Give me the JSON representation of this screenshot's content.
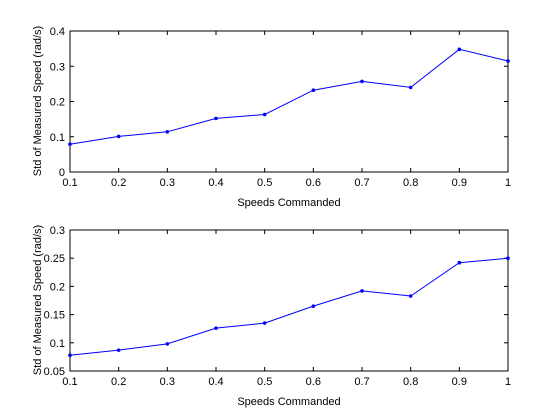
{
  "colors": {
    "series_line": "#0000ff",
    "axes": "#000000",
    "background": "#ffffff"
  },
  "chart_data": [
    {
      "type": "line",
      "title": "",
      "xlabel": "Speeds Commanded",
      "ylabel": "Std of Measured Speed (rad/s)",
      "xlim": [
        0.1,
        1
      ],
      "ylim": [
        0,
        0.4
      ],
      "xticks": [
        0.1,
        0.2,
        0.3,
        0.4,
        0.5,
        0.6,
        0.7,
        0.8,
        0.9,
        1
      ],
      "xtick_labels": [
        "0.1",
        "0.2",
        "0.3",
        "0.4",
        "0.5",
        "0.6",
        "0.7",
        "0.8",
        "0.9",
        "1"
      ],
      "yticks": [
        0,
        0.1,
        0.2,
        0.3,
        0.4
      ],
      "ytick_labels": [
        "0",
        "0.1",
        "0.2",
        "0.3",
        "0.4"
      ],
      "grid": false,
      "legend": "none",
      "marker": "dot",
      "series": [
        {
          "x": [
            0.1,
            0.2,
            0.3,
            0.4,
            0.5,
            0.6,
            0.7,
            0.8,
            0.9,
            1.0
          ],
          "values": [
            0.079,
            0.101,
            0.114,
            0.152,
            0.163,
            0.232,
            0.257,
            0.24,
            0.348,
            0.315
          ]
        }
      ]
    },
    {
      "type": "line",
      "title": "",
      "xlabel": "Speeds Commanded",
      "ylabel": "Std of Measured Speed (rad/s)",
      "xlim": [
        0.1,
        1
      ],
      "ylim": [
        0.05,
        0.3
      ],
      "xticks": [
        0.1,
        0.2,
        0.3,
        0.4,
        0.5,
        0.6,
        0.7,
        0.8,
        0.9,
        1
      ],
      "xtick_labels": [
        "0.1",
        "0.2",
        "0.3",
        "0.4",
        "0.5",
        "0.6",
        "0.7",
        "0.8",
        "0.9",
        "1"
      ],
      "yticks": [
        0.05,
        0.1,
        0.15,
        0.2,
        0.25,
        0.3
      ],
      "ytick_labels": [
        "0.05",
        "0.1",
        "0.15",
        "0.2",
        "0.25",
        "0.3"
      ],
      "grid": false,
      "legend": "none",
      "marker": "dot",
      "series": [
        {
          "x": [
            0.1,
            0.2,
            0.3,
            0.4,
            0.5,
            0.6,
            0.7,
            0.8,
            0.9,
            1.0
          ],
          "values": [
            0.078,
            0.087,
            0.098,
            0.126,
            0.135,
            0.165,
            0.192,
            0.183,
            0.242,
            0.25
          ]
        }
      ]
    }
  ]
}
